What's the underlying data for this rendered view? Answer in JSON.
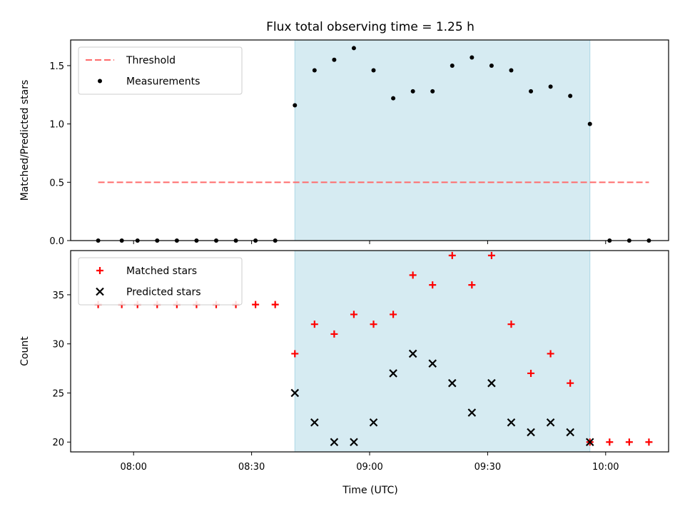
{
  "chart_data": {
    "title": "Flux total observing time = 1.25 h",
    "xlabel": "Time (UTC)",
    "x_ticks": [
      "08:00",
      "08:30",
      "09:00",
      "09:30",
      "10:00"
    ],
    "x_range": [
      "07:44",
      "10:16"
    ],
    "shaded_interval": [
      "08:41",
      "09:56"
    ],
    "shade_color": "#add8e6",
    "panels": [
      {
        "type": "scatter",
        "ylabel": "Matched/Predicted stars",
        "ylim": [
          0,
          1.72
        ],
        "y_ticks": [
          0.0,
          0.5,
          1.0,
          1.5
        ],
        "y_tick_labels": [
          "0.0",
          "0.5",
          "1.0",
          "1.5"
        ],
        "legend": "top-left",
        "threshold": {
          "name": "Threshold",
          "value": 0.5,
          "x_start": "07:51",
          "x_end": "10:11",
          "color": "#ff6b6b"
        },
        "series": [
          {
            "name": "Measurements",
            "marker": "dot",
            "color": "#000000",
            "x": [
              "07:51",
              "07:57",
              "08:01",
              "08:06",
              "08:11",
              "08:16",
              "08:21",
              "08:26",
              "08:31",
              "08:36",
              "08:41",
              "08:46",
              "08:51",
              "08:56",
              "09:01",
              "09:06",
              "09:11",
              "09:16",
              "09:21",
              "09:26",
              "09:31",
              "09:36",
              "09:41",
              "09:46",
              "09:51",
              "09:56",
              "10:01",
              "10:06",
              "10:11"
            ],
            "y": [
              0,
              0,
              0,
              0,
              0,
              0,
              0,
              0,
              0,
              0,
              1.16,
              1.46,
              1.55,
              1.65,
              1.46,
              1.22,
              1.28,
              1.28,
              1.5,
              1.57,
              1.5,
              1.46,
              1.28,
              1.32,
              1.24,
              1.0,
              0,
              0,
              0
            ]
          }
        ]
      },
      {
        "type": "scatter",
        "ylabel": "Count",
        "ylim": [
          19,
          39.5
        ],
        "y_ticks": [
          20,
          25,
          30,
          35
        ],
        "y_tick_labels": [
          "20",
          "25",
          "30",
          "35"
        ],
        "legend": "top-left",
        "series": [
          {
            "name": "Matched stars",
            "marker": "plus",
            "color": "#ff0000",
            "x": [
              "07:51",
              "07:57",
              "08:01",
              "08:06",
              "08:11",
              "08:16",
              "08:21",
              "08:26",
              "08:31",
              "08:36",
              "08:41",
              "08:46",
              "08:51",
              "08:56",
              "09:01",
              "09:06",
              "09:11",
              "09:16",
              "09:21",
              "09:26",
              "09:31",
              "09:36",
              "09:41",
              "09:46",
              "09:51",
              "09:56",
              "10:01",
              "10:06",
              "10:11"
            ],
            "y": [
              34,
              34,
              34,
              34,
              34,
              34,
              34,
              34,
              34,
              34,
              29,
              32,
              31,
              33,
              32,
              33,
              37,
              36,
              39,
              36,
              39,
              32,
              27,
              29,
              26,
              20,
              20,
              20,
              20
            ]
          },
          {
            "name": "Predicted stars",
            "marker": "x",
            "color": "#000000",
            "x": [
              "08:41",
              "08:46",
              "08:51",
              "08:56",
              "09:01",
              "09:06",
              "09:11",
              "09:16",
              "09:21",
              "09:26",
              "09:31",
              "09:36",
              "09:41",
              "09:46",
              "09:51",
              "09:56"
            ],
            "y": [
              25,
              22,
              20,
              20,
              22,
              27,
              29,
              28,
              26,
              23,
              26,
              22,
              21,
              22,
              21,
              20
            ]
          }
        ]
      }
    ]
  }
}
